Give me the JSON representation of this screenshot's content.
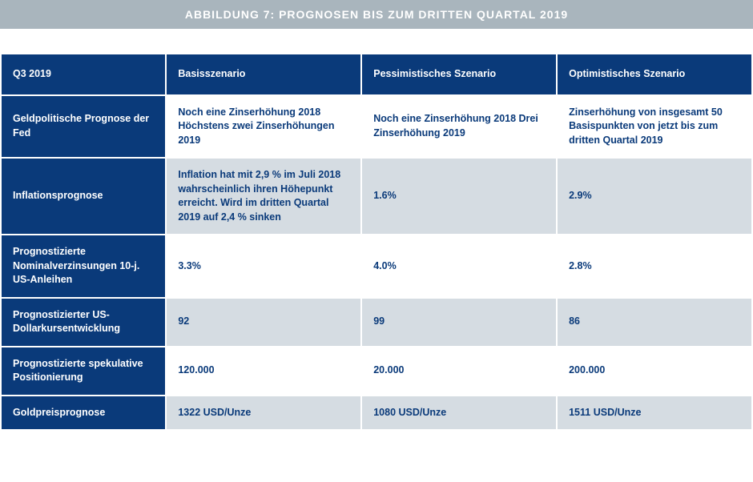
{
  "title": "ABBILDUNG 7: PROGNOSEN BIS ZUM DRITTEN QUARTAL 2019",
  "colors": {
    "title_bg": "#a9b5bd",
    "header_bg": "#0a3a7a",
    "header_text": "#ffffff",
    "cell_text": "#0a3a7a",
    "row_alt_bg": "#d5dce2",
    "row_bg": "#ffffff",
    "border": "#ffffff"
  },
  "table": {
    "type": "table",
    "columns": [
      "Q3 2019",
      "Basisszenario",
      "Pessimistisches Szenario",
      "Optimistisches Szenario"
    ],
    "col_widths_pct": [
      22,
      26,
      26,
      26
    ],
    "header_fontsize": 12.5,
    "cell_fontsize": 12.5,
    "rows": [
      {
        "label": "Geldpolitische Prognose der Fed",
        "cells": [
          "Noch eine Zinserhöhung 2018 Höchstens zwei Zinserhöhungen 2019",
          "Noch eine Zinserhöhung 2018 Drei Zinserhöhung 2019",
          "Zinserhöhung von insgesamt 50 Basispunkten von jetzt bis zum dritten Quartal 2019"
        ],
        "alt": false
      },
      {
        "label": "Inflationsprognose",
        "cells": [
          "Inflation hat mit 2,9 % im Juli 2018 wahrscheinlich ihren Höhepunkt erreicht. Wird im dritten Quartal 2019 auf 2,4 % sinken",
          "1.6%",
          "2.9%"
        ],
        "alt": true
      },
      {
        "label": "Prognostizierte Nominalverzinsungen  10-j. US-Anleihen",
        "cells": [
          "3.3%",
          "4.0%",
          "2.8%"
        ],
        "alt": false
      },
      {
        "label": "Prognostizierter US-Dollarkursentwicklung",
        "cells": [
          "92",
          "99",
          "86"
        ],
        "alt": true
      },
      {
        "label": "Prognostizierte spekulative Positionierung",
        "cells": [
          "120.000",
          "20.000",
          "200.000"
        ],
        "alt": false
      },
      {
        "label": "Goldpreisprognose",
        "cells": [
          "1322 USD/Unze",
          "1080 USD/Unze",
          "1511 USD/Unze"
        ],
        "alt": true
      }
    ]
  }
}
